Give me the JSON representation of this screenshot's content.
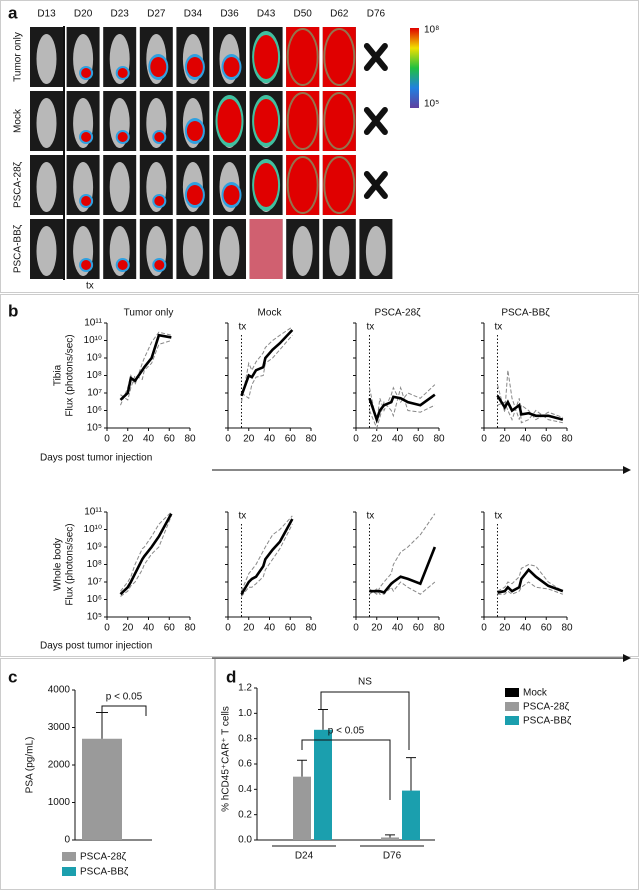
{
  "panel_labels": [
    "a",
    "b",
    "c",
    "d"
  ],
  "panel_a": {
    "days": [
      "D13",
      "D20",
      "D23",
      "D27",
      "D34",
      "D36",
      "D43",
      "D50",
      "D62",
      "D76"
    ],
    "rows": [
      "Tumor only",
      "Mock",
      "PSCA-28ζ",
      "PSCA-BBζ"
    ],
    "colorbar_max": "10⁸",
    "colorbar_min": "10⁵",
    "tx": "tx"
  },
  "panel_b": {
    "x_label": "Days post tumor injection"
  },
  "chart_data": [
    {
      "type": "line",
      "title": "Tumor only",
      "ylabel": [
        "Tibia",
        "Flux (photons/sec)"
      ],
      "x": [
        13,
        20,
        23,
        27,
        34,
        36,
        43,
        50,
        62
      ],
      "xlim": [
        0,
        80
      ],
      "xticks": [
        0,
        20,
        40,
        60,
        80
      ],
      "ylim": [
        100000.0,
        100000000000.0
      ],
      "log": true,
      "show_ytick_labels": true,
      "yticks": [
        {
          "value": 100000.0,
          "label": "10⁵"
        },
        {
          "value": 1000000.0,
          "label": "10⁶"
        },
        {
          "value": 10000000.0,
          "label": "10⁷"
        },
        {
          "value": 100000000.0,
          "label": "10⁸"
        },
        {
          "value": 1000000000.0,
          "label": "10⁹"
        },
        {
          "value": 10000000000.0,
          "label": "10¹⁰"
        },
        {
          "value": 100000000000.0,
          "label": "10¹¹"
        }
      ],
      "series": [
        {
          "color": "#888888",
          "dash": true,
          "values": [
            2000000.0,
            20000000.0,
            100000000.0,
            30000000.0,
            500000000.0,
            1000000000.0,
            8000000000.0,
            30000000000.0,
            20000000000.0
          ]
        },
        {
          "color": "#888888",
          "dash": true,
          "values": [
            8000000.0,
            4000000.0,
            20000000.0,
            100000000.0,
            60000000.0,
            200000000.0,
            500000000.0,
            6000000000.0,
            10000000000.0
          ]
        },
        {
          "color": "#000000",
          "dash": false,
          "values": [
            4000000.0,
            10000000.0,
            70000000.0,
            50000000.0,
            200000000.0,
            300000000.0,
            1000000000.0,
            20000000000.0,
            15000000000.0
          ]
        }
      ]
    },
    {
      "type": "line",
      "title": "Mock",
      "x": [
        13,
        20,
        23,
        27,
        34,
        36,
        43,
        50,
        62
      ],
      "xlim": [
        0,
        80
      ],
      "xticks": [
        0,
        20,
        40,
        60,
        80
      ],
      "ylim": [
        100000.0,
        100000000000.0
      ],
      "log": true,
      "show_ytick_labels": false,
      "yticks": [
        100000.0,
        1000000.0,
        10000000.0,
        100000000.0,
        1000000000.0,
        10000000000.0,
        100000000000.0
      ],
      "vline": 13,
      "vline_label": "tx",
      "series": [
        {
          "color": "#888888",
          "dash": true,
          "values": [
            3000000.0,
            500000000.0,
            200000000.0,
            600000000.0,
            2000000000.0,
            4000000000.0,
            10000000000.0,
            20000000000.0,
            60000000000.0
          ]
        },
        {
          "color": "#888888",
          "dash": true,
          "values": [
            10000000.0,
            5000000.0,
            30000000.0,
            80000000.0,
            100000000.0,
            500000000.0,
            1000000000.0,
            3000000000.0,
            20000000000.0
          ]
        },
        {
          "color": "#000000",
          "dash": false,
          "values": [
            7000000.0,
            100000000.0,
            80000000.0,
            200000000.0,
            300000000.0,
            1000000000.0,
            3000000000.0,
            7000000000.0,
            40000000000.0
          ]
        }
      ]
    },
    {
      "type": "line",
      "title": "PSCA-28ζ",
      "x": [
        13,
        20,
        23,
        27,
        34,
        36,
        43,
        50,
        62,
        76
      ],
      "xlim": [
        0,
        80
      ],
      "xticks": [
        0,
        20,
        40,
        60,
        80
      ],
      "ylim": [
        100000.0,
        100000000000.0
      ],
      "log": true,
      "show_ytick_labels": false,
      "yticks": [
        100000.0,
        1000000.0,
        10000000.0,
        100000000.0,
        1000000000.0,
        10000000000.0,
        100000000000.0
      ],
      "vline": 13,
      "vline_label": "tx",
      "series": [
        {
          "color": "#888888",
          "dash": true,
          "values": [
            20000000.0,
            200000.0,
            5000000.0,
            1000000.0,
            8000000.0,
            20000000.0,
            3000000.0,
            10000000.0,
            5000000.0,
            30000000.0
          ]
        },
        {
          "color": "#888888",
          "dash": true,
          "values": [
            1000000.0,
            100000.0,
            400000.0,
            3000000.0,
            1000000.0,
            500000.0,
            20000000.0,
            1000000.0,
            800000.0,
            2000000.0
          ]
        },
        {
          "color": "#000000",
          "dash": false,
          "values": [
            5000000.0,
            300000.0,
            1000000.0,
            2000000.0,
            3000000.0,
            6000000.0,
            5000000.0,
            3000000.0,
            2000000.0,
            8000000.0
          ]
        }
      ]
    },
    {
      "type": "line",
      "title": "PSCA-BBζ",
      "x": [
        13,
        20,
        23,
        27,
        34,
        36,
        43,
        50,
        62,
        76
      ],
      "xlim": [
        0,
        80
      ],
      "xticks": [
        0,
        20,
        40,
        60,
        80
      ],
      "ylim": [
        100000.0,
        100000000000.0
      ],
      "log": true,
      "show_ytick_labels": false,
      "yticks": [
        100000.0,
        1000000.0,
        10000000.0,
        100000000.0,
        1000000000.0,
        10000000000.0,
        100000000000.0
      ],
      "vline": 13,
      "vline_label": "tx",
      "series": [
        {
          "color": "#888888",
          "dash": true,
          "values": [
            30000000.0,
            800000.0,
            200000000.0,
            5000000.0,
            300000.0,
            2000000.0,
            1000000.0,
            300000.0,
            800000.0,
            400000.0
          ]
        },
        {
          "color": "#888888",
          "dash": true,
          "values": [
            2000000.0,
            3000000.0,
            1000000.0,
            300000.0,
            5000000.0,
            200000.0,
            300000.0,
            1000000.0,
            300000.0,
            200000.0
          ]
        },
        {
          "color": "#000000",
          "dash": false,
          "values": [
            7000000.0,
            1500000.0,
            3000000.0,
            1000000.0,
            2000000.0,
            600000.0,
            700000.0,
            500000.0,
            500000.0,
            300000.0
          ]
        }
      ]
    },
    {
      "type": "line",
      "ylabel": [
        "Whole body",
        "Flux (photons/sec)"
      ],
      "x": [
        13,
        20,
        23,
        27,
        34,
        36,
        43,
        50,
        62
      ],
      "xlim": [
        0,
        80
      ],
      "xticks": [
        0,
        20,
        40,
        60,
        80
      ],
      "ylim": [
        100000.0,
        100000000000.0
      ],
      "log": true,
      "show_ytick_labels": true,
      "yticks": [
        {
          "value": 100000.0,
          "label": "10⁵"
        },
        {
          "value": 1000000.0,
          "label": "10⁶"
        },
        {
          "value": 10000000.0,
          "label": "10⁷"
        },
        {
          "value": 100000000.0,
          "label": "10⁸"
        },
        {
          "value": 1000000000.0,
          "label": "10⁹"
        },
        {
          "value": 10000000000.0,
          "label": "10¹⁰"
        },
        {
          "value": 100000000000.0,
          "label": "10¹¹"
        }
      ],
      "series": [
        {
          "color": "#888888",
          "dash": true,
          "values": [
            3000000.0,
            10000000.0,
            20000000.0,
            100000000.0,
            800000000.0,
            1000000000.0,
            4000000000.0,
            20000000000.0,
            100000000000.0
          ]
        },
        {
          "color": "#888888",
          "dash": true,
          "values": [
            1500000.0,
            3000000.0,
            6000000.0,
            10000000.0,
            50000000.0,
            100000000.0,
            400000000.0,
            1000000000.0,
            60000000000.0
          ]
        },
        {
          "color": "#000000",
          "dash": false,
          "values": [
            2000000.0,
            5000000.0,
            10000000.0,
            30000000.0,
            200000000.0,
            300000000.0,
            1000000000.0,
            4000000000.0,
            80000000000.0
          ]
        }
      ]
    },
    {
      "type": "line",
      "x": [
        13,
        20,
        23,
        27,
        34,
        36,
        43,
        50,
        62
      ],
      "xlim": [
        0,
        80
      ],
      "xticks": [
        0,
        20,
        40,
        60,
        80
      ],
      "ylim": [
        100000.0,
        100000000000.0
      ],
      "log": true,
      "show_ytick_labels": false,
      "yticks": [
        100000.0,
        1000000.0,
        10000000.0,
        100000000.0,
        1000000000.0,
        10000000000.0,
        100000000000.0
      ],
      "vline": 13,
      "vline_label": "tx",
      "series": [
        {
          "color": "#888888",
          "dash": true,
          "values": [
            3000000.0,
            30000000.0,
            50000000.0,
            100000000.0,
            600000000.0,
            1000000000.0,
            5000000000.0,
            10000000000.0,
            60000000000.0
          ]
        },
        {
          "color": "#888888",
          "dash": true,
          "values": [
            1500000.0,
            5000000.0,
            5000000.0,
            8000000.0,
            20000000.0,
            50000000.0,
            200000000.0,
            800000000.0,
            20000000000.0
          ]
        },
        {
          "color": "#000000",
          "dash": false,
          "values": [
            2000000.0,
            10000000.0,
            15000000.0,
            20000000.0,
            80000000.0,
            200000000.0,
            700000000.0,
            2000000000.0,
            40000000000.0
          ]
        }
      ]
    },
    {
      "type": "line",
      "x": [
        13,
        20,
        23,
        27,
        34,
        36,
        43,
        50,
        62,
        76
      ],
      "xlim": [
        0,
        80
      ],
      "xticks": [
        0,
        20,
        40,
        60,
        80
      ],
      "ylim": [
        100000.0,
        100000000000.0
      ],
      "log": true,
      "show_ytick_labels": false,
      "yticks": [
        100000.0,
        1000000.0,
        10000000.0,
        100000000.0,
        1000000000.0,
        10000000000.0,
        100000000000.0
      ],
      "vline": 13,
      "vline_label": "tx",
      "series": [
        {
          "color": "#888888",
          "dash": true,
          "values": [
            4000000.0,
            2000000.0,
            5000000.0,
            10000000.0,
            30000000.0,
            100000000.0,
            500000000.0,
            1000000000.0,
            5000000000.0,
            80000000000.0
          ]
        },
        {
          "color": "#888888",
          "dash": true,
          "values": [
            2000000.0,
            4000000.0,
            2000000.0,
            2000000.0,
            5000000.0,
            3000000.0,
            10000000.0,
            5000000.0,
            2000000.0,
            10000000.0
          ]
        },
        {
          "color": "#000000",
          "dash": false,
          "values": [
            3000000.0,
            3000000.0,
            3000000.0,
            2500000.0,
            8000000.0,
            10000000.0,
            20000000.0,
            15000000.0,
            8000000.0,
            1000000000.0
          ]
        }
      ]
    },
    {
      "type": "line",
      "x": [
        13,
        20,
        23,
        27,
        34,
        36,
        43,
        50,
        62,
        76
      ],
      "xlim": [
        0,
        80
      ],
      "xticks": [
        0,
        20,
        40,
        60,
        80
      ],
      "ylim": [
        100000.0,
        100000000000.0
      ],
      "log": true,
      "show_ytick_labels": false,
      "yticks": [
        100000.0,
        1000000.0,
        10000000.0,
        100000000.0,
        1000000000.0,
        10000000000.0,
        100000000000.0
      ],
      "vline": 13,
      "vline_label": "tx",
      "series": [
        {
          "color": "#888888",
          "dash": true,
          "values": [
            3000000.0,
            5000000.0,
            10000000.0,
            8000000.0,
            20000000.0,
            60000000.0,
            100000000.0,
            80000000.0,
            10000000.0,
            3000000.0
          ]
        },
        {
          "color": "#888888",
          "dash": true,
          "values": [
            2000000.0,
            2000000.0,
            3000000.0,
            2000000.0,
            3000000.0,
            5000000.0,
            10000000.0,
            5000000.0,
            4000000.0,
            2000000.0
          ]
        },
        {
          "color": "#000000",
          "dash": false,
          "values": [
            2500000.0,
            3000000.0,
            5000000.0,
            3000000.0,
            5000000.0,
            15000000.0,
            50000000.0,
            20000000.0,
            6000000.0,
            3000000.0
          ]
        }
      ]
    },
    {
      "type": "bar",
      "ylabel": "PSA (pg/mL)",
      "ylim": [
        0,
        4000
      ],
      "yticks": [
        0,
        1000,
        2000,
        3000,
        4000
      ],
      "annotation": "p < 0.05",
      "series": [
        {
          "name": "PSCA-28ζ",
          "color": "#9a9a9a",
          "values": [
            2700
          ],
          "errors": [
            700
          ]
        },
        {
          "name": "PSCA-BBζ",
          "color": "#1b9fae",
          "values": [
            0
          ],
          "errors": [
            0
          ]
        }
      ]
    },
    {
      "type": "grouped_bar",
      "ylabel": "% hCD45⁺CAR⁺ T cells",
      "categories": [
        "D24",
        "D76"
      ],
      "ylim": [
        0,
        1.2
      ],
      "yticks": [
        {
          "value": 0,
          "label": "0.0"
        },
        0.2,
        0.4,
        0.6,
        0.8,
        {
          "value": 1,
          "label": "1.0"
        },
        1.2
      ],
      "annotations": [
        "p < 0.05",
        "NS"
      ],
      "series": [
        {
          "name": "Mock",
          "color": "#000000",
          "values": [
            0,
            0
          ],
          "errors": [
            0,
            0
          ]
        },
        {
          "name": "PSCA-28ζ",
          "color": "#9a9a9a",
          "values": [
            0.5,
            0.02
          ],
          "errors": [
            0.13,
            0.02
          ]
        },
        {
          "name": "PSCA-BBζ",
          "color": "#1b9fae",
          "values": [
            0.87,
            0.39
          ],
          "errors": [
            0.16,
            0.26
          ]
        }
      ]
    }
  ]
}
